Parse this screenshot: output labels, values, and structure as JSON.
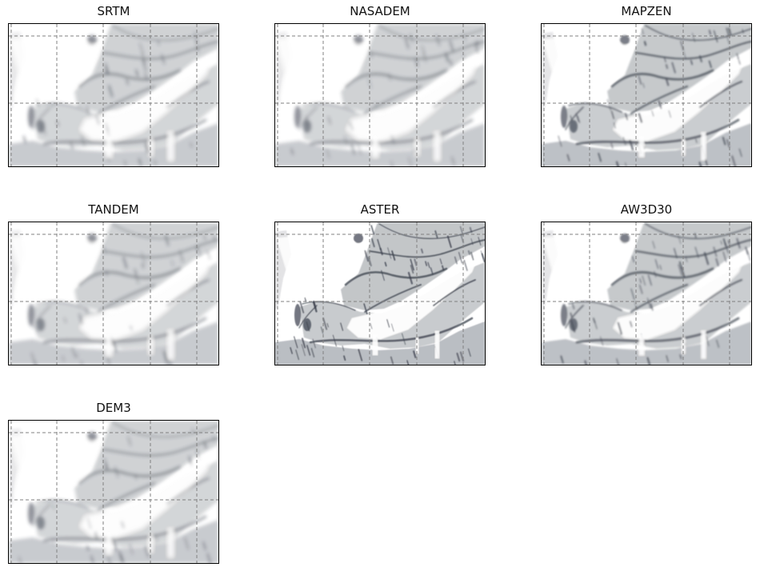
{
  "figure": {
    "panels": [
      {
        "title": "SRTM",
        "style": "smooth"
      },
      {
        "title": "NASADEM",
        "style": "smooth"
      },
      {
        "title": "MAPZEN",
        "style": "sharp"
      },
      {
        "title": "TANDEM",
        "style": "smooth"
      },
      {
        "title": "ASTER",
        "style": "rough"
      },
      {
        "title": "AW3D30",
        "style": "sharp"
      },
      {
        "title": "DEM3",
        "style": "smooth"
      }
    ],
    "gridline_color": "#808080",
    "shade_color": "#2f3542",
    "background_color": "#ffffff"
  }
}
